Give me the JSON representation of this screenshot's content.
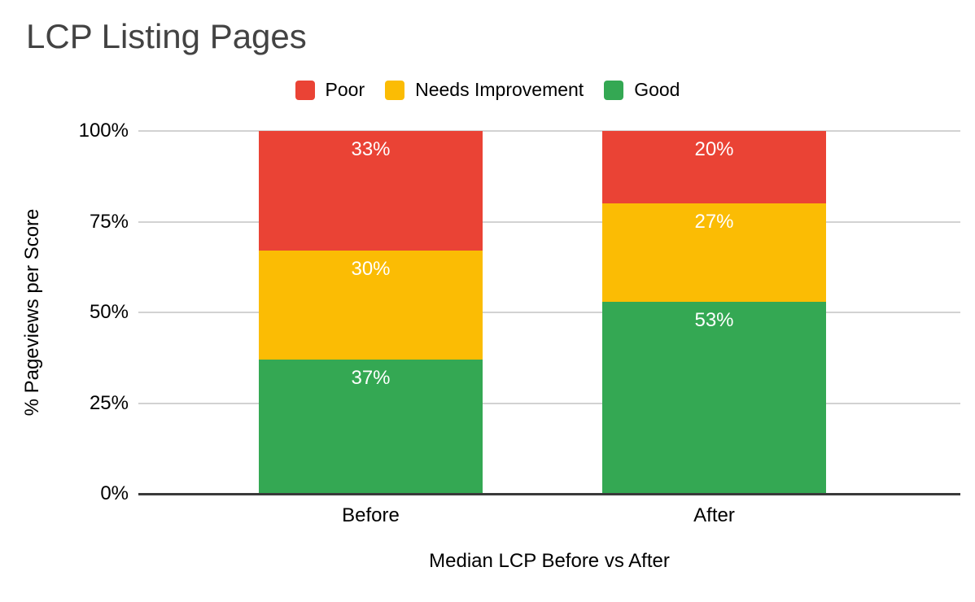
{
  "chart_data": {
    "type": "bar",
    "variant": "stacked-column-100",
    "title": "LCP Listing Pages",
    "xlabel": "Median LCP Before vs After",
    "ylabel": "% Pageviews per Score",
    "categories": [
      "Before",
      "After"
    ],
    "series": [
      {
        "name": "Poor",
        "color": "#EA4335",
        "values": [
          33,
          20
        ]
      },
      {
        "name": "Needs Improvement",
        "color": "#FBBC04",
        "values": [
          30,
          27
        ]
      },
      {
        "name": "Good",
        "color": "#34A853",
        "values": [
          37,
          53
        ]
      }
    ],
    "stack_order_bottom_to_top": [
      "Good",
      "Needs Improvement",
      "Poor"
    ],
    "y_ticks": [
      "0%",
      "25%",
      "50%",
      "75%",
      "100%"
    ],
    "ylim": [
      0,
      100
    ],
    "grid": true,
    "legend_position": "top",
    "data_label_format": "{value}%",
    "data_label_color": "#ffffff",
    "gridline_color": "#d2d2d2",
    "axis_line_color": "#3a3a3a",
    "title_color": "#434343",
    "background_color": "#ffffff"
  }
}
